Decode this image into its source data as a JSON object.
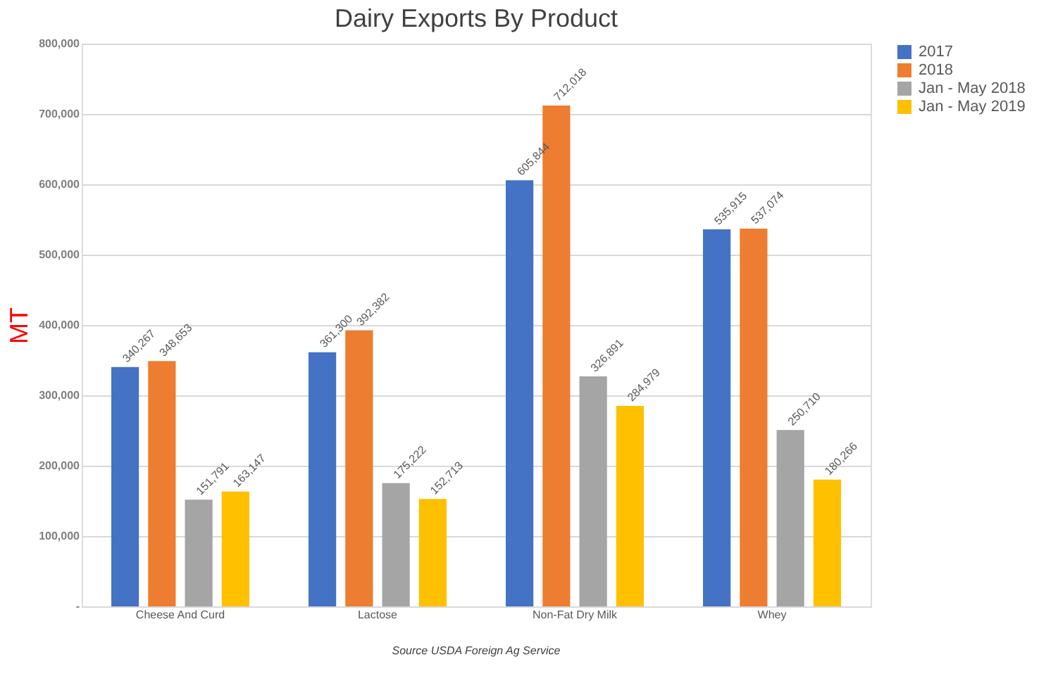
{
  "chart_data": {
    "type": "bar",
    "title": "Dairy Exports By Product",
    "ylabel": "MT",
    "categories": [
      "Cheese And Curd",
      "Lactose",
      "Non-Fat Dry Milk",
      "Whey"
    ],
    "series": [
      {
        "name": "2017",
        "color": "#4472c4",
        "values": [
          340267,
          361300,
          605844,
          535915
        ],
        "value_labels": [
          "340,267",
          "361,300",
          "605,844",
          "535,915"
        ]
      },
      {
        "name": "2018",
        "color": "#ed7d31",
        "values": [
          348653,
          392382,
          712018,
          537074
        ],
        "value_labels": [
          "348,653",
          "392,382",
          "712,018",
          "537,074"
        ]
      },
      {
        "name": "Jan - May 2018",
        "color": "#a5a5a5",
        "values": [
          151791,
          175222,
          326891,
          250710
        ],
        "value_labels": [
          "151,791",
          "175,222",
          "326,891",
          "250,710"
        ]
      },
      {
        "name": "Jan - May 2019",
        "color": "#ffc000",
        "values": [
          163147,
          152713,
          284979,
          180266
        ],
        "value_labels": [
          "163,147",
          "152,713",
          "284,979",
          "180,266"
        ]
      }
    ],
    "ylim": [
      0,
      800000
    ],
    "yticks": [
      {
        "value": 0,
        "label": "-"
      },
      {
        "value": 100000,
        "label": "100,000"
      },
      {
        "value": 200000,
        "label": "200,000"
      },
      {
        "value": 300000,
        "label": "300,000"
      },
      {
        "value": 400000,
        "label": "400,000"
      },
      {
        "value": 500000,
        "label": "500,000"
      },
      {
        "value": 600000,
        "label": "600,000"
      },
      {
        "value": 700000,
        "label": "700,000"
      },
      {
        "value": 800000,
        "label": "800,000"
      }
    ],
    "grid": "y",
    "legend": "right",
    "annotations": [
      "Source USDA Foreign Ag Service"
    ]
  }
}
